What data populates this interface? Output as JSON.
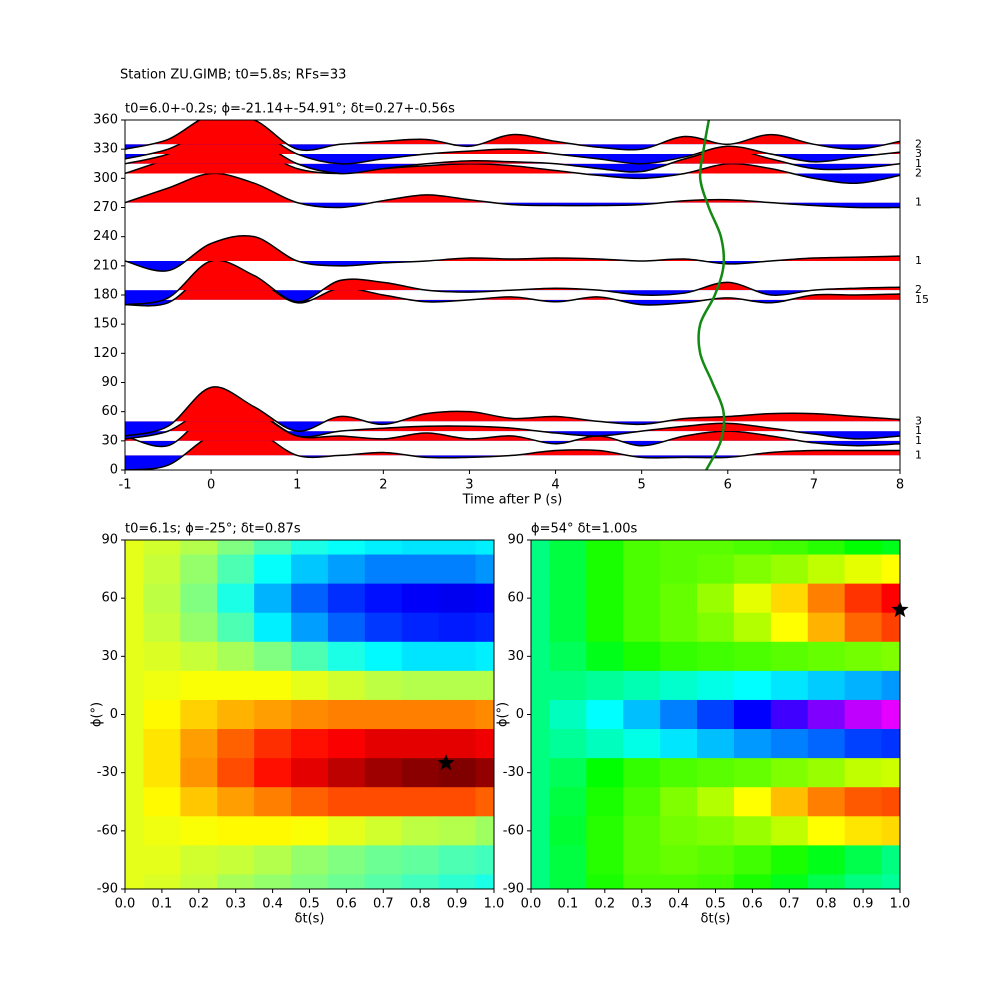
{
  "suptitle": "Station ZU.GIMB; t0=5.8s; RFs=33",
  "chart_data": [
    {
      "type": "wiggle",
      "title": "t0=6.0+-0.2s; ϕ=-21.14+-54.91°; δt=0.27+-0.56s",
      "xlabel": "Time after P (s)",
      "xlim": [
        -1,
        8
      ],
      "xticks": [
        -1,
        0,
        1,
        2,
        3,
        4,
        5,
        6,
        7,
        8
      ],
      "ylim": [
        0,
        360
      ],
      "yticks": [
        0,
        30,
        60,
        90,
        120,
        150,
        180,
        210,
        240,
        270,
        300,
        330,
        360
      ],
      "positive_color": "#ff0000",
      "negative_color": "#0000ff",
      "line_color": "#000000",
      "x": [
        -1,
        -0.5,
        0,
        0.5,
        1,
        1.5,
        2,
        2.5,
        3,
        3.5,
        4,
        4.5,
        5,
        5.5,
        6,
        6.5,
        7,
        7.5,
        8
      ],
      "traces": [
        {
          "baz": 15,
          "count": 1,
          "values": [
            -15,
            -10,
            20,
            25,
            0,
            0,
            3,
            -2,
            -2,
            0,
            5,
            5,
            -2,
            -2,
            -2,
            3,
            5,
            5,
            5
          ]
        },
        {
          "baz": 30,
          "count": 1,
          "values": [
            5,
            -5,
            30,
            30,
            5,
            5,
            2,
            8,
            2,
            5,
            -3,
            5,
            -5,
            5,
            10,
            5,
            -2,
            -5,
            -3
          ]
        },
        {
          "baz": 40,
          "count": 1,
          "values": [
            -8,
            0,
            25,
            20,
            -5,
            0,
            3,
            5,
            5,
            3,
            -2,
            -5,
            0,
            5,
            8,
            3,
            -3,
            -8,
            -5
          ]
        },
        {
          "baz": 50,
          "count": 3,
          "values": [
            -15,
            -5,
            35,
            15,
            -10,
            5,
            -3,
            8,
            10,
            3,
            5,
            0,
            -3,
            3,
            5,
            8,
            8,
            5,
            2
          ]
        },
        {
          "baz": 175,
          "count": 15,
          "values": [
            -5,
            -3,
            30,
            22,
            -3,
            12,
            5,
            -2,
            0,
            3,
            -2,
            3,
            -5,
            -3,
            2,
            -3,
            5,
            5,
            6
          ]
        },
        {
          "baz": 185,
          "count": 2,
          "values": [
            -15,
            -8,
            30,
            15,
            -12,
            10,
            8,
            0,
            -2,
            0,
            2,
            0,
            -5,
            -3,
            8,
            -5,
            0,
            2,
            3
          ]
        },
        {
          "baz": 215,
          "count": 1,
          "values": [
            0,
            -10,
            18,
            25,
            0,
            -5,
            -2,
            0,
            3,
            2,
            3,
            2,
            0,
            2,
            -3,
            0,
            3,
            4,
            5
          ]
        },
        {
          "baz": 275,
          "count": 1,
          "values": [
            0,
            15,
            30,
            20,
            0,
            -5,
            2,
            8,
            3,
            -2,
            -3,
            -3,
            -2,
            2,
            3,
            0,
            -3,
            -5,
            -5
          ]
        },
        {
          "baz": 305,
          "count": 2,
          "values": [
            0,
            15,
            30,
            25,
            5,
            0,
            5,
            8,
            10,
            8,
            3,
            -2,
            -5,
            0,
            10,
            5,
            -5,
            -10,
            -2
          ]
        },
        {
          "baz": 315,
          "count": 1,
          "values": [
            0,
            10,
            30,
            25,
            0,
            -10,
            -5,
            0,
            3,
            2,
            0,
            -5,
            -8,
            5,
            15,
            5,
            -5,
            -5,
            0
          ]
        },
        {
          "baz": 325,
          "count": 3,
          "values": [
            -5,
            5,
            25,
            25,
            0,
            -10,
            -5,
            0,
            3,
            5,
            0,
            -5,
            -10,
            -3,
            8,
            0,
            -8,
            -3,
            2
          ]
        },
        {
          "baz": 335,
          "count": 2,
          "values": [
            -5,
            5,
            30,
            25,
            -5,
            0,
            3,
            5,
            -2,
            10,
            3,
            -3,
            -5,
            8,
            0,
            10,
            0,
            -5,
            3
          ]
        }
      ],
      "t0_curve": {
        "color": "#138a13",
        "baz": [
          0,
          30,
          60,
          90,
          120,
          150,
          180,
          210,
          240,
          270,
          300,
          330,
          360
        ],
        "t": [
          5.75,
          5.92,
          5.95,
          5.82,
          5.68,
          5.68,
          5.85,
          5.95,
          5.92,
          5.78,
          5.68,
          5.72,
          5.78
        ]
      }
    },
    {
      "type": "heatmap",
      "title": "t0=6.1s; ϕ=-25°; δt=0.87s",
      "xlabel": "δt(s)",
      "ylabel": "ϕ(°)",
      "colormap": "jet",
      "clim": [
        0,
        1
      ],
      "xlim": [
        0,
        1
      ],
      "xticks": [
        {
          "value": 0,
          "label": "0.0"
        },
        0.1,
        0.2,
        0.3,
        0.4,
        0.5,
        0.6,
        0.7,
        0.8,
        0.9,
        {
          "value": 1,
          "label": "1.0"
        }
      ],
      "ylim": [
        -90,
        90
      ],
      "yticks": [
        -90,
        -60,
        -30,
        0,
        30,
        60,
        90
      ],
      "x": [
        0,
        0.1,
        0.2,
        0.3,
        0.4,
        0.5,
        0.6,
        0.7,
        0.8,
        0.9,
        1
      ],
      "y": [
        90,
        75,
        60,
        45,
        30,
        15,
        0,
        -15,
        -30,
        -45,
        -60,
        -75,
        -90
      ],
      "z": [
        [
          0.6,
          0.58,
          0.55,
          0.5,
          0.45,
          0.4,
          0.38,
          0.36,
          0.35,
          0.35,
          0.36
        ],
        [
          0.6,
          0.57,
          0.52,
          0.45,
          0.38,
          0.32,
          0.28,
          0.25,
          0.25,
          0.25,
          0.27
        ],
        [
          0.6,
          0.56,
          0.5,
          0.4,
          0.3,
          0.22,
          0.17,
          0.14,
          0.12,
          0.11,
          0.12
        ],
        [
          0.6,
          0.57,
          0.52,
          0.45,
          0.36,
          0.28,
          0.22,
          0.18,
          0.16,
          0.15,
          0.16
        ],
        [
          0.6,
          0.59,
          0.57,
          0.54,
          0.5,
          0.45,
          0.4,
          0.37,
          0.35,
          0.35,
          0.36
        ],
        [
          0.6,
          0.61,
          0.62,
          0.62,
          0.62,
          0.6,
          0.58,
          0.56,
          0.55,
          0.55,
          0.55
        ],
        [
          0.6,
          0.63,
          0.67,
          0.7,
          0.72,
          0.74,
          0.75,
          0.75,
          0.75,
          0.75,
          0.74
        ],
        [
          0.6,
          0.65,
          0.72,
          0.78,
          0.83,
          0.86,
          0.88,
          0.9,
          0.9,
          0.9,
          0.89
        ],
        [
          0.6,
          0.65,
          0.73,
          0.8,
          0.86,
          0.9,
          0.94,
          0.97,
          0.99,
          1.0,
          0.98
        ],
        [
          0.6,
          0.63,
          0.68,
          0.72,
          0.75,
          0.78,
          0.8,
          0.8,
          0.8,
          0.8,
          0.78
        ],
        [
          0.6,
          0.61,
          0.62,
          0.63,
          0.63,
          0.62,
          0.6,
          0.58,
          0.56,
          0.55,
          0.53
        ],
        [
          0.6,
          0.6,
          0.58,
          0.57,
          0.55,
          0.52,
          0.5,
          0.48,
          0.47,
          0.45,
          0.44
        ],
        [
          0.6,
          0.59,
          0.57,
          0.54,
          0.52,
          0.5,
          0.48,
          0.46,
          0.44,
          0.42,
          0.4
        ]
      ],
      "best": {
        "dt": 0.87,
        "phi": -25
      }
    },
    {
      "type": "heatmap",
      "title": "ϕ=54° δt=1.00s",
      "xlabel": "δt(s)",
      "ylabel": "ϕ(°)",
      "colormap": "gist_rainbow",
      "clim": [
        0,
        1
      ],
      "xlim": [
        0,
        1
      ],
      "xticks": [
        {
          "value": 0,
          "label": "0.0"
        },
        0.1,
        0.2,
        0.3,
        0.4,
        0.5,
        0.6,
        0.7,
        0.8,
        0.9,
        {
          "value": 1,
          "label": "1.0"
        }
      ],
      "ylim": [
        -90,
        90
      ],
      "yticks": [
        -90,
        -60,
        -30,
        0,
        30,
        60,
        90
      ],
      "x": [
        0,
        0.1,
        0.2,
        0.3,
        0.4,
        0.5,
        0.6,
        0.7,
        0.8,
        0.9,
        1
      ],
      "y": [
        90,
        75,
        60,
        45,
        30,
        15,
        0,
        -15,
        -30,
        -45,
        -60,
        -75,
        -90
      ],
      "z": [
        [
          0.5,
          0.45,
          0.38,
          0.34,
          0.33,
          0.33,
          0.34,
          0.35,
          0.37,
          0.4,
          0.42
        ],
        [
          0.5,
          0.45,
          0.38,
          0.34,
          0.33,
          0.32,
          0.3,
          0.28,
          0.25,
          0.22,
          0.2
        ],
        [
          0.5,
          0.45,
          0.38,
          0.34,
          0.32,
          0.28,
          0.22,
          0.17,
          0.1,
          0.04,
          0
        ],
        [
          0.5,
          0.45,
          0.38,
          0.34,
          0.32,
          0.3,
          0.26,
          0.2,
          0.14,
          0.08,
          0.05
        ],
        [
          0.5,
          0.47,
          0.42,
          0.38,
          0.36,
          0.35,
          0.34,
          0.33,
          0.32,
          0.31,
          0.3
        ],
        [
          0.5,
          0.5,
          0.52,
          0.54,
          0.56,
          0.58,
          0.6,
          0.62,
          0.64,
          0.66,
          0.68
        ],
        [
          0.5,
          0.55,
          0.6,
          0.65,
          0.7,
          0.75,
          0.8,
          0.85,
          0.9,
          0.95,
          0.98
        ],
        [
          0.5,
          0.52,
          0.55,
          0.58,
          0.62,
          0.65,
          0.68,
          0.7,
          0.72,
          0.75,
          0.76
        ],
        [
          0.5,
          0.47,
          0.4,
          0.36,
          0.34,
          0.33,
          0.32,
          0.3,
          0.28,
          0.25,
          0.24
        ],
        [
          0.5,
          0.45,
          0.38,
          0.34,
          0.3,
          0.26,
          0.2,
          0.15,
          0.1,
          0.07,
          0.06
        ],
        [
          0.5,
          0.44,
          0.37,
          0.33,
          0.31,
          0.3,
          0.28,
          0.25,
          0.2,
          0.18,
          0.17
        ],
        [
          0.5,
          0.45,
          0.37,
          0.33,
          0.32,
          0.33,
          0.35,
          0.38,
          0.42,
          0.46,
          0.5
        ],
        [
          0.5,
          0.45,
          0.38,
          0.34,
          0.34,
          0.35,
          0.38,
          0.42,
          0.46,
          0.5,
          0.52
        ]
      ],
      "best": {
        "dt": 1.0,
        "phi": 54
      }
    }
  ]
}
